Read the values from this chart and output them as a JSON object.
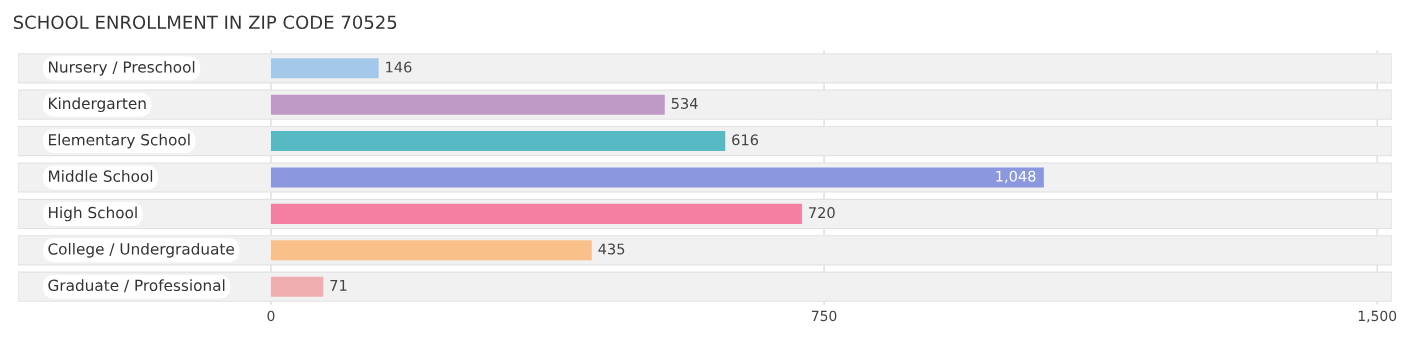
{
  "chart_data": {
    "type": "bar",
    "orientation": "horizontal",
    "title": "SCHOOL ENROLLMENT IN ZIP CODE 70525",
    "categories": [
      "Nursery / Preschool",
      "Kindergarten",
      "Elementary School",
      "Middle School",
      "High School",
      "College / Undergraduate",
      "Graduate / Professional"
    ],
    "values": [
      146,
      534,
      616,
      1048,
      720,
      435,
      71
    ],
    "colors": [
      "#a4c8ea",
      "#c09ac6",
      "#56b9c4",
      "#8b98e0",
      "#f47fa3",
      "#f9c08a",
      "#f0aeb0"
    ],
    "value_labels": [
      "146",
      "534",
      "616",
      "1,048",
      "720",
      "435",
      "71"
    ],
    "xlim": [
      -343,
      1520
    ],
    "xticks": [
      0,
      750,
      {
        "value": 1500,
        "label": "1,500"
      }
    ],
    "grid": "x"
  }
}
